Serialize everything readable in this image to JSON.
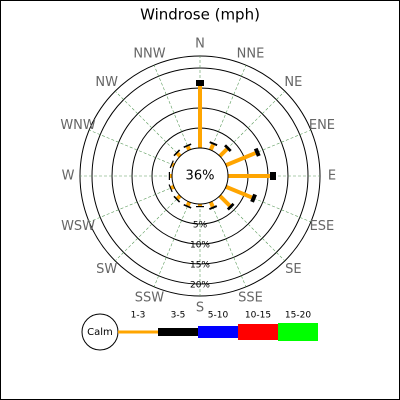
{
  "chart_data": {
    "type": "windrose",
    "title": "Windrose (mph)",
    "categories": [
      "N",
      "NNE",
      "NE",
      "ENE",
      "E",
      "ESE",
      "SE",
      "SSE",
      "S",
      "SSW",
      "SW",
      "WSW",
      "W",
      "WNW",
      "NW",
      "NNW"
    ],
    "calm": 36,
    "calm_label": "36%",
    "calm_name": "Calm",
    "rticks": [
      {
        "value": 5,
        "label": "5%"
      },
      {
        "value": 10,
        "label": "10%"
      },
      {
        "value": 15,
        "label": "15%"
      },
      {
        "value": 20,
        "label": "20%"
      }
    ],
    "series": [
      {
        "name": "1-3",
        "color": "#ffa500",
        "values": [
          15.5,
          1.5,
          2.5,
          8,
          10.5,
          7,
          3.5,
          1.3,
          0.5,
          1,
          1,
          0.8,
          0.5,
          0.5,
          1,
          1
        ]
      },
      {
        "name": "3-5",
        "color": "#000000",
        "values": [
          1.5,
          0.5,
          0.7,
          1,
          1.5,
          1,
          0.7,
          0.5,
          0.3,
          0.4,
          0.4,
          0.3,
          0.3,
          0.3,
          0.4,
          0.4
        ]
      },
      {
        "name": "5-10",
        "color": "#0000ff",
        "values": [
          0,
          0,
          0,
          0,
          0,
          0,
          0,
          0,
          0,
          0,
          0,
          0,
          0,
          0,
          0,
          0
        ]
      },
      {
        "name": "10-15",
        "color": "#ff0000",
        "values": [
          0,
          0,
          0,
          0,
          0,
          0,
          0,
          0,
          0,
          0,
          0,
          0,
          0,
          0,
          0,
          0
        ]
      },
      {
        "name": "15-20",
        "color": "#00ff00",
        "values": [
          0,
          0,
          0,
          0,
          0,
          0,
          0,
          0,
          0,
          0,
          0,
          0,
          0,
          0,
          0,
          0
        ]
      }
    ]
  }
}
